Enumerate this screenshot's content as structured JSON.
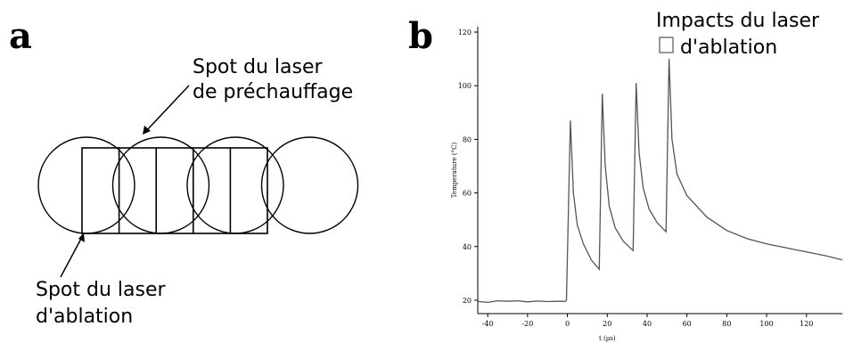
{
  "panel_a": {
    "letter": "a",
    "label_preheat_line1": "Spot du laser",
    "label_preheat_line2": "de préchauffage",
    "label_ablation_line1": "Spot du laser",
    "label_ablation_line2": "d'ablation",
    "spot_count": 4,
    "square_count": 5
  },
  "panel_b": {
    "letter": "b",
    "legend_line1": "Impacts du laser",
    "legend_line2": "d'ablation"
  },
  "chart_data": {
    "type": "line",
    "xlabel": "t (µs)",
    "ylabel": "Temperature (°C)",
    "xlim": [
      -45,
      138
    ],
    "ylim": [
      15,
      122
    ],
    "x_ticks": [
      -40,
      -20,
      0,
      20,
      40,
      60,
      80,
      100,
      120
    ],
    "y_ticks": [
      20,
      40,
      60,
      80,
      100,
      120
    ],
    "series": [
      {
        "values": [
          [
            -45,
            19.5
          ],
          [
            -40,
            19.2
          ],
          [
            -35,
            19.8
          ],
          [
            -30,
            19.6
          ],
          [
            -25,
            19.8
          ],
          [
            -20,
            19.4
          ],
          [
            -15,
            19.7
          ],
          [
            -10,
            19.5
          ],
          [
            -5,
            19.6
          ],
          [
            -1,
            19.6
          ],
          [
            -0.5,
            20
          ],
          [
            1.5,
            87
          ],
          [
            3,
            60
          ],
          [
            5,
            48
          ],
          [
            8,
            41
          ],
          [
            12,
            35
          ],
          [
            16,
            31.5
          ],
          [
            17.5,
            97
          ],
          [
            19,
            70
          ],
          [
            21,
            55
          ],
          [
            24,
            47
          ],
          [
            28,
            42
          ],
          [
            33,
            38.5
          ],
          [
            34.5,
            101
          ],
          [
            36,
            75
          ],
          [
            38,
            62
          ],
          [
            41,
            54
          ],
          [
            45,
            49
          ],
          [
            49.5,
            45.5
          ],
          [
            51,
            110
          ],
          [
            52.5,
            80
          ],
          [
            55,
            67
          ],
          [
            60,
            59
          ],
          [
            70,
            51
          ],
          [
            80,
            46
          ],
          [
            90,
            43
          ],
          [
            100,
            41
          ],
          [
            110,
            39.5
          ],
          [
            120,
            38
          ],
          [
            130,
            36.5
          ],
          [
            138,
            35
          ]
        ]
      }
    ],
    "impact_times": [
      1.5,
      17.5,
      34.5,
      51
    ]
  }
}
